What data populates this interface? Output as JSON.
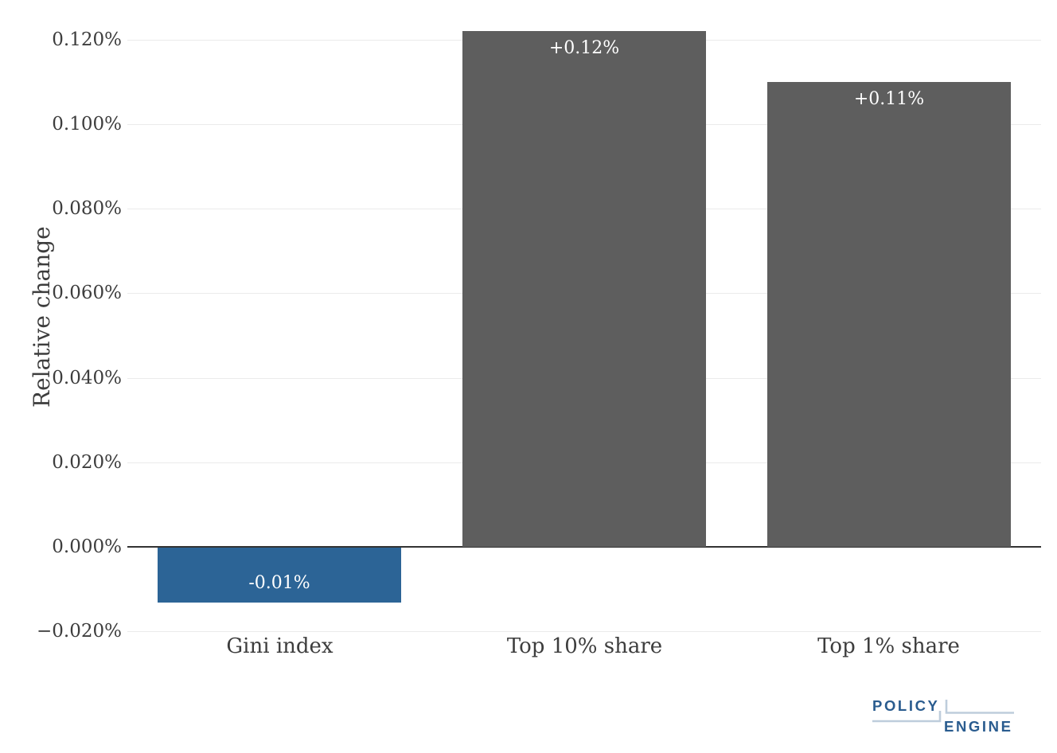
{
  "chart_data": {
    "type": "bar",
    "title": "",
    "xlabel": "",
    "ylabel": "Relative change",
    "categories": [
      "Gini index",
      "Top 10% share",
      "Top 1% share"
    ],
    "values": [
      -0.013,
      0.122,
      0.11
    ],
    "bar_labels": [
      "-0.01%",
      "+0.12%",
      "+0.11%"
    ],
    "bar_colors": [
      "#2C6496",
      "#5E5E5E",
      "#5E5E5E"
    ],
    "bar_label_color": "#FFFFFF",
    "yticks": [
      0.12,
      0.1,
      0.08,
      0.06,
      0.04,
      0.02,
      0.0,
      -0.02
    ],
    "ytick_labels": [
      "0.120%",
      "0.100%",
      "0.080%",
      "0.060%",
      "0.040%",
      "0.020%",
      "0.000%",
      "−0.020%"
    ],
    "ylim": [
      -0.02,
      0.1295
    ],
    "grid": true,
    "legend_position": "none",
    "zero_line": true
  },
  "branding": {
    "logo_line1": "POLICY",
    "logo_line2": "ENGINE"
  },
  "colors": {
    "background": "#FFFFFF",
    "gridline": "#EBEBEB",
    "zero_line": "#333333",
    "tick_text": "#3D3D3D",
    "logo_text": "#2A5C8F",
    "logo_line": "#BECDDC"
  }
}
